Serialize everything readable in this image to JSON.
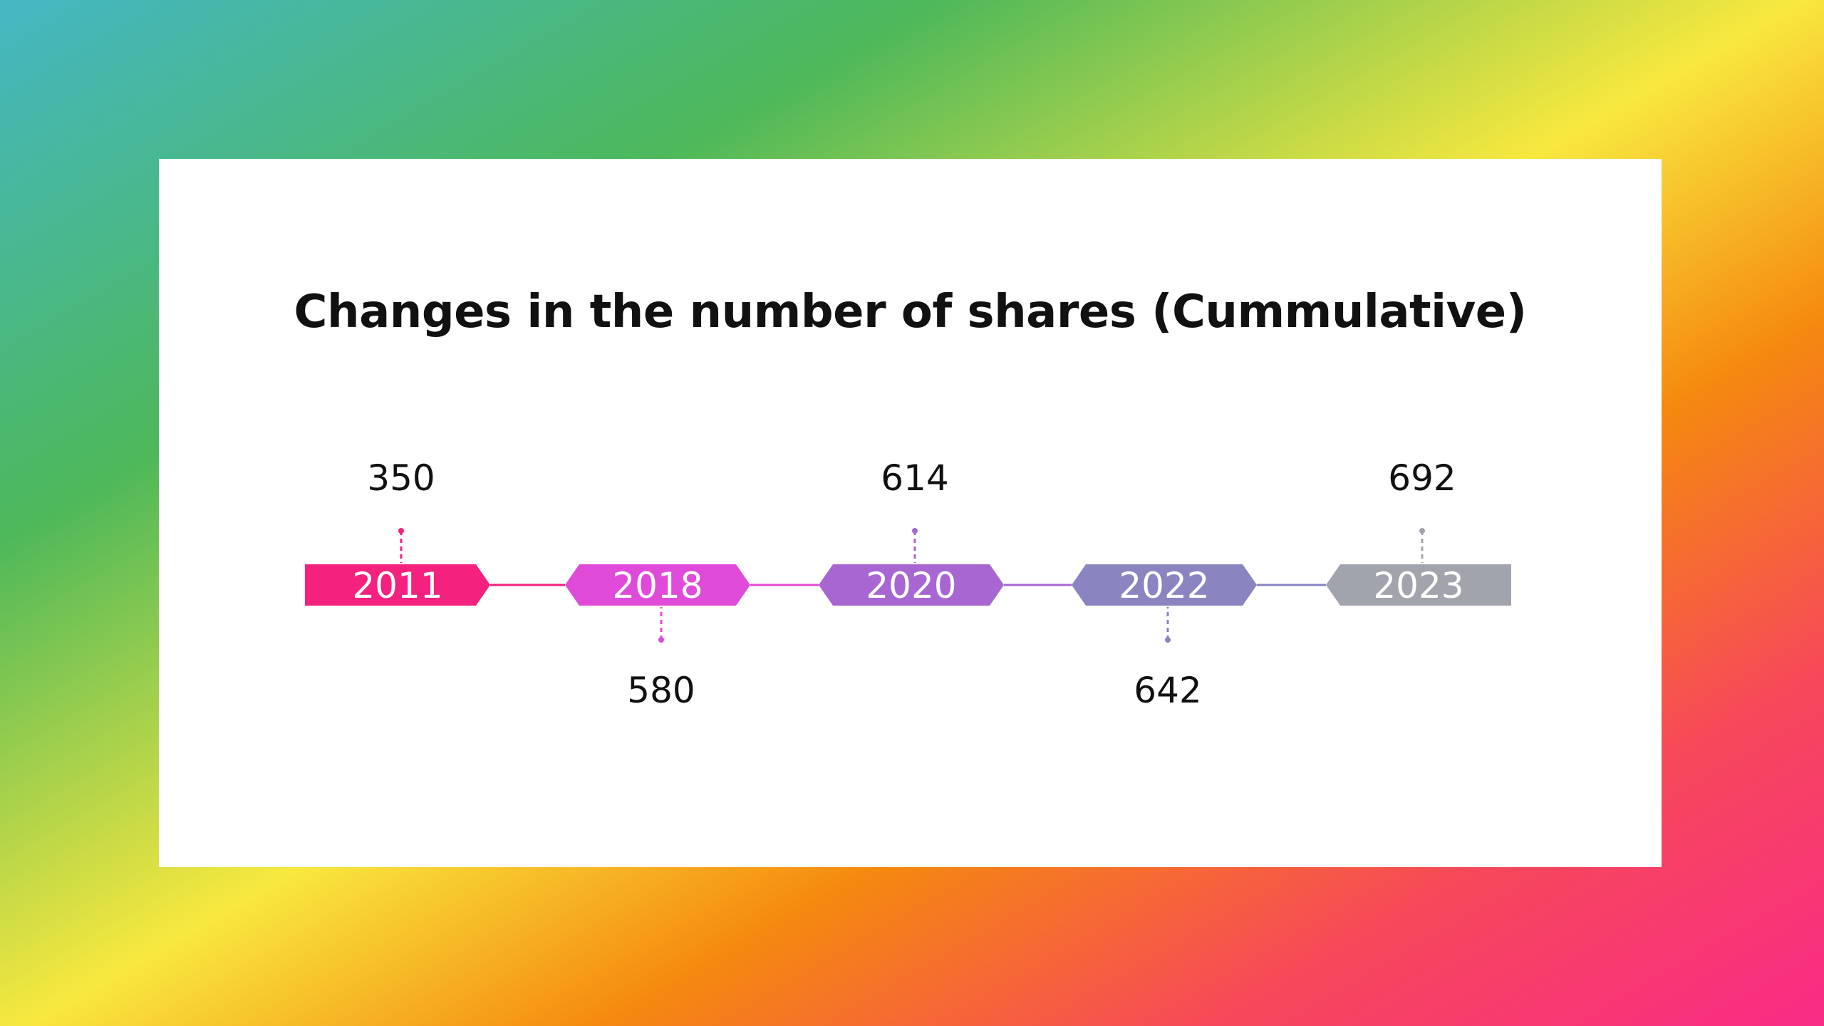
{
  "title": "Changes in the number of shares (Cummulative)",
  "timeline": [
    {
      "year": "2011",
      "value": "350",
      "label_side": "top",
      "color": "#f4217e"
    },
    {
      "year": "2018",
      "value": "580",
      "label_side": "bottom",
      "color": "#e04ad9"
    },
    {
      "year": "2020",
      "value": "614",
      "label_side": "top",
      "color": "#a766d1"
    },
    {
      "year": "2022",
      "value": "642",
      "label_side": "bottom",
      "color": "#8a84c1"
    },
    {
      "year": "2023",
      "value": "692",
      "label_side": "top",
      "color": "#a1a4ac"
    }
  ]
}
